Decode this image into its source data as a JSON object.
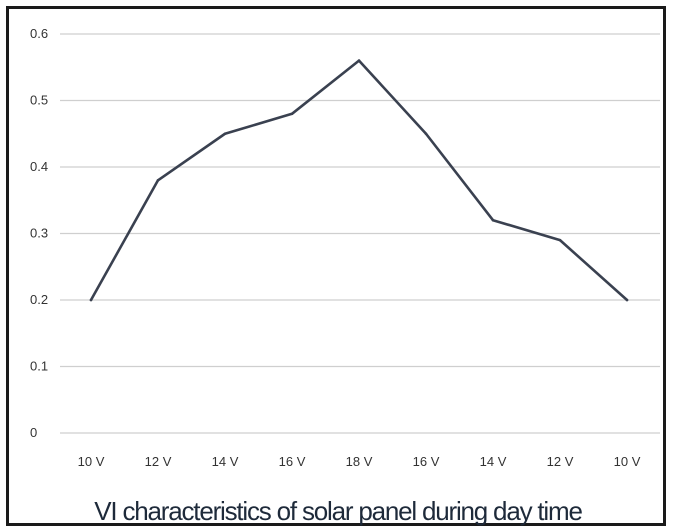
{
  "chart_data": {
    "type": "line",
    "categories": [
      "10 V",
      "12 V",
      "14 V",
      "16 V",
      "18 V",
      "16 V",
      "14 V",
      "12 V",
      "10 V"
    ],
    "series": [
      {
        "values": [
          0.2,
          0.38,
          0.45,
          0.48,
          0.56,
          0.45,
          0.32,
          0.29,
          0.2
        ]
      }
    ],
    "title": "VI characteristics of solar panel during day time",
    "xlabel": "",
    "ylabel": "",
    "ylim": [
      0,
      0.6
    ],
    "yticks": [
      "0",
      "0.1",
      "0.2",
      "0.3",
      "0.4",
      "0.5",
      "0.6"
    ],
    "grid": true,
    "line_color": "#3a4150",
    "grid_color": "#cfcfcf"
  }
}
